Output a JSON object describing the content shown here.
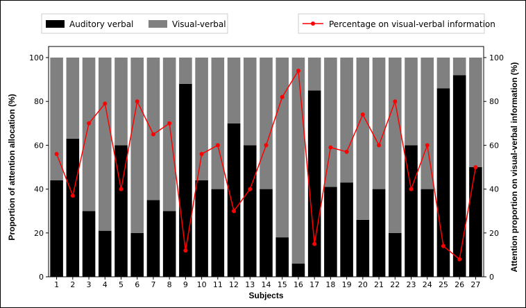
{
  "chart_data": {
    "type": "bar",
    "categories": [
      "1",
      "2",
      "3",
      "4",
      "5",
      "6",
      "7",
      "8",
      "9",
      "10",
      "11",
      "12",
      "13",
      "14",
      "15",
      "16",
      "17",
      "18",
      "19",
      "20",
      "21",
      "22",
      "23",
      "24",
      "25",
      "26",
      "27"
    ],
    "series": [
      {
        "name": "Auditory verbal",
        "type": "bar",
        "stacked": true,
        "color": "#000000",
        "values": [
          44,
          63,
          30,
          21,
          60,
          20,
          35,
          30,
          88,
          44,
          40,
          70,
          60,
          40,
          18,
          6,
          85,
          41,
          43,
          26,
          40,
          20,
          60,
          40,
          86,
          92,
          50
        ]
      },
      {
        "name": "Visual-verbal",
        "type": "bar",
        "stacked": true,
        "color": "#808080",
        "values": [
          56,
          37,
          70,
          79,
          40,
          80,
          65,
          70,
          12,
          56,
          60,
          30,
          40,
          60,
          82,
          94,
          15,
          59,
          57,
          74,
          60,
          80,
          40,
          60,
          14,
          8,
          50
        ]
      },
      {
        "name": "Percentage on visual-verbal information",
        "type": "line",
        "axis": "right",
        "color": "#ff0000",
        "marker": "circle",
        "values": [
          56,
          37,
          70,
          79,
          40,
          80,
          65,
          70,
          12,
          56,
          60,
          30,
          40,
          60,
          82,
          94,
          15,
          59,
          57,
          74,
          60,
          80,
          40,
          60,
          14,
          8,
          50
        ]
      }
    ],
    "xlabel": "Subjects",
    "ylabel": "Proportion of attention allocation (%)",
    "ylabel_right": "Attention proportion on visual-verbal information (%)",
    "ylim": [
      0,
      100
    ],
    "ylim_right": [
      0,
      100
    ],
    "yticks": [
      0,
      20,
      40,
      60,
      80,
      100
    ],
    "yticks_right": [
      0,
      20,
      40,
      60,
      80,
      100
    ],
    "grid": false,
    "legend_placement": "top"
  }
}
